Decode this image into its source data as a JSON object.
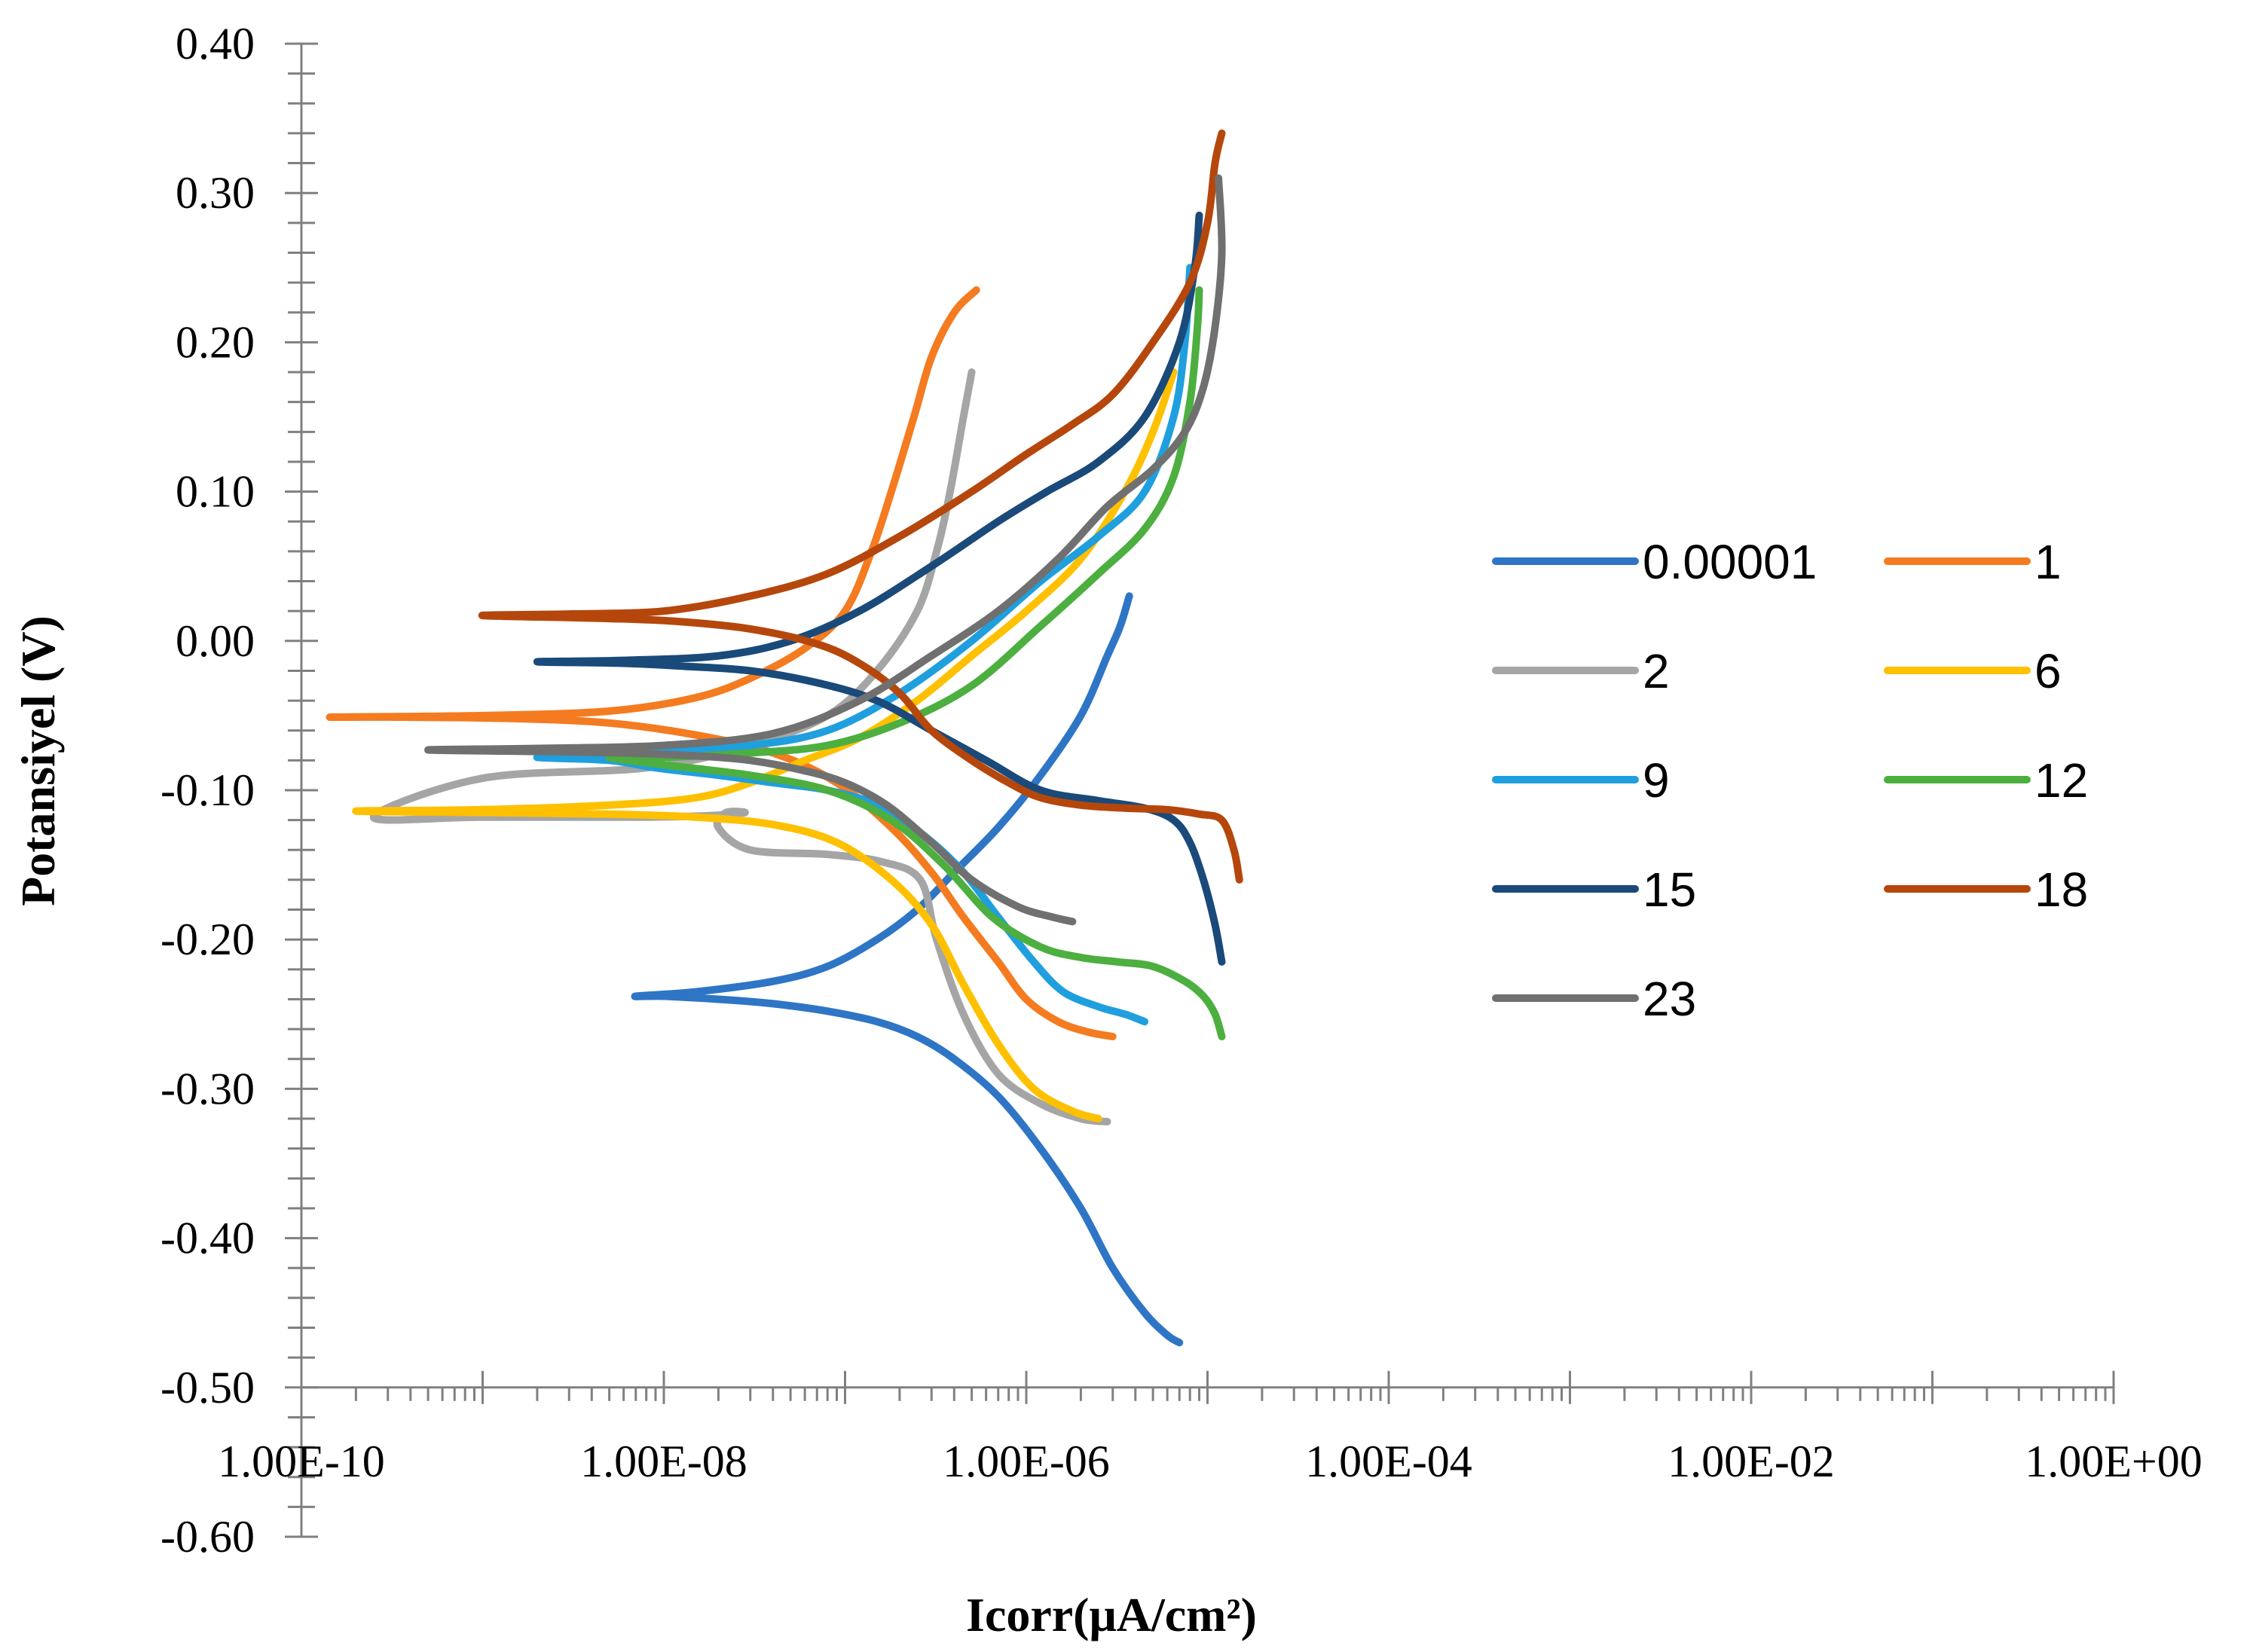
{
  "chart_data": {
    "type": "line",
    "title": "",
    "xlabel": "Icorr(μA/cm²)",
    "ylabel": "Potansiyel (V)",
    "xscale": "log",
    "xlim": [
      1e-10,
      1
    ],
    "ylim": [
      -0.6,
      0.4
    ],
    "x_axis_crosses_y_at": -0.5,
    "x_tick_labels": [
      "1.00E-10",
      "1.00E-08",
      "1.00E-06",
      "1.00E-04",
      "1.00E-02",
      "1.00E+00"
    ],
    "y_tick_labels": [
      "0.40",
      "0.30",
      "0.20",
      "0.10",
      "0.00",
      "-0.10",
      "-0.20",
      "-0.30",
      "-0.40",
      "-0.50",
      "-0.60"
    ],
    "legend_position": "right",
    "series": [
      {
        "name": "0.00001",
        "color": "#2E75C6",
        "x": [
          7e-06,
          6e-06,
          4.5e-06,
          3e-06,
          2e-06,
          1.2e-06,
          7e-07,
          4e-07,
          2.5e-07,
          1.5e-07,
          8e-08,
          4e-08,
          2e-08,
          1e-08,
          7e-09,
          1.5e-08,
          4e-08,
          8e-08,
          1.5e-07,
          2.5e-07,
          4e-07,
          7e-07,
          1.2e-06,
          2e-06,
          2.8e-06,
          3.3e-06,
          3.7e-06
        ],
        "y": [
          -0.47,
          -0.465,
          -0.45,
          -0.42,
          -0.38,
          -0.34,
          -0.305,
          -0.28,
          -0.265,
          -0.255,
          -0.248,
          -0.243,
          -0.24,
          -0.238,
          -0.238,
          -0.235,
          -0.228,
          -0.218,
          -0.2,
          -0.18,
          -0.155,
          -0.125,
          -0.09,
          -0.05,
          -0.01,
          0.01,
          0.03
        ]
      },
      {
        "name": "1",
        "color": "#F47B20",
        "x": [
          3e-06,
          2.2e-06,
          1.5e-06,
          1e-06,
          7e-07,
          4.5e-07,
          3e-07,
          1.8e-07,
          9e-08,
          4e-08,
          1.5e-08,
          5e-09,
          1.5e-09,
          3e-10,
          1.5e-10,
          1e-09,
          5e-09,
          1.5e-08,
          3e-08,
          6e-08,
          1e-07,
          1.4e-07,
          1.8e-07,
          2.4e-07,
          3e-07,
          4e-07,
          5.3e-07
        ],
        "y": [
          -0.265,
          -0.262,
          -0.255,
          -0.24,
          -0.215,
          -0.185,
          -0.155,
          -0.125,
          -0.095,
          -0.075,
          -0.063,
          -0.055,
          -0.052,
          -0.051,
          -0.051,
          -0.05,
          -0.047,
          -0.038,
          -0.025,
          -0.005,
          0.02,
          0.06,
          0.1,
          0.15,
          0.19,
          0.22,
          0.235
        ]
      },
      {
        "name": "2",
        "color": "#A5A5A5",
        "x": [
          2.8e-06,
          2e-06,
          1.2e-06,
          7e-07,
          4.5e-07,
          3.2e-07,
          2.6e-07,
          1.6e-07,
          8e-08,
          3e-08,
          2e-08,
          2.2e-08,
          2.8e-08,
          1.8e-08,
          8e-09,
          1e-09,
          2.5e-10,
          1e-09,
          8e-09,
          3e-08,
          8e-08,
          1.5e-07,
          2.5e-07,
          3.2e-07,
          3.8e-07,
          4.5e-07,
          5e-07
        ],
        "y": [
          -0.322,
          -0.32,
          -0.31,
          -0.29,
          -0.25,
          -0.2,
          -0.16,
          -0.148,
          -0.143,
          -0.14,
          -0.125,
          -0.115,
          -0.115,
          -0.117,
          -0.118,
          -0.118,
          -0.118,
          -0.092,
          -0.085,
          -0.07,
          -0.05,
          -0.02,
          0.02,
          0.06,
          0.1,
          0.15,
          0.18
        ]
      },
      {
        "name": "6",
        "color": "#FFC000",
        "x": [
          2.5e-06,
          1.8e-06,
          1.1e-06,
          7e-07,
          4.5e-07,
          3e-07,
          1.8e-07,
          9e-08,
          4e-08,
          1.5e-08,
          5e-09,
          1.2e-09,
          2e-10,
          1e-09,
          5e-09,
          1.5e-08,
          3e-08,
          6e-08,
          1.2e-07,
          2.5e-07,
          5e-07,
          1e-06,
          2e-06,
          3.5e-06,
          5e-06,
          6.5e-06
        ],
        "y": [
          -0.32,
          -0.315,
          -0.3,
          -0.27,
          -0.23,
          -0.19,
          -0.16,
          -0.135,
          -0.123,
          -0.118,
          -0.116,
          -0.115,
          -0.114,
          -0.113,
          -0.11,
          -0.105,
          -0.095,
          -0.08,
          -0.065,
          -0.04,
          -0.01,
          0.02,
          0.055,
          0.1,
          0.14,
          0.18
        ]
      },
      {
        "name": "9",
        "color": "#1F9FDE",
        "x": [
          4.5e-06,
          3.5e-06,
          2.5e-06,
          1.6e-06,
          1.1e-06,
          7e-07,
          4.5e-07,
          2.7e-07,
          1.5e-07,
          8e-08,
          4e-08,
          2e-08,
          9e-09,
          5e-09,
          2e-09,
          4e-09,
          1e-08,
          3e-08,
          8e-08,
          2e-07,
          5e-07,
          1.2e-06,
          2.5e-06,
          4.5e-06,
          6.5e-06,
          7.5e-06,
          8e-06
        ],
        "y": [
          -0.255,
          -0.25,
          -0.245,
          -0.235,
          -0.215,
          -0.185,
          -0.155,
          -0.13,
          -0.11,
          -0.1,
          -0.095,
          -0.09,
          -0.085,
          -0.08,
          -0.078,
          -0.076,
          -0.073,
          -0.07,
          -0.06,
          -0.035,
          0.0,
          0.04,
          0.07,
          0.1,
          0.15,
          0.2,
          0.25
        ]
      },
      {
        "name": "12",
        "color": "#4CAF3F",
        "x": [
          1.2e-05,
          1.1e-05,
          9.5e-06,
          7.5e-06,
          5e-06,
          3.2e-06,
          2e-06,
          1.2e-06,
          6.5e-07,
          3.5e-07,
          1.8e-07,
          8e-08,
          3e-08,
          1e-08,
          5e-09,
          1e-08,
          3e-08,
          8e-08,
          2e-07,
          5e-07,
          1.2e-06,
          2.5e-06,
          4.5e-06,
          6.5e-06,
          8e-06,
          8.8e-06,
          9e-06
        ],
        "y": [
          -0.265,
          -0.25,
          -0.238,
          -0.228,
          -0.218,
          -0.215,
          -0.212,
          -0.205,
          -0.185,
          -0.15,
          -0.12,
          -0.1,
          -0.09,
          -0.083,
          -0.078,
          -0.078,
          -0.075,
          -0.07,
          -0.055,
          -0.03,
          0.01,
          0.045,
          0.075,
          0.11,
          0.16,
          0.21,
          0.235
        ]
      },
      {
        "name": "15",
        "color": "#1A4A7A",
        "x": [
          1.2e-05,
          1.1e-05,
          9.5e-06,
          8e-06,
          6.5e-06,
          4.5e-06,
          2.5e-06,
          1.2e-06,
          6e-07,
          3e-07,
          1.5e-07,
          7e-08,
          3e-08,
          1.3e-08,
          6e-09,
          2e-09,
          6e-09,
          2e-08,
          5e-08,
          1.2e-07,
          3e-07,
          7e-07,
          1.3e-06,
          2.5e-06,
          4.5e-06,
          7e-06,
          8.5e-06,
          9e-06
        ],
        "y": [
          -0.215,
          -0.19,
          -0.16,
          -0.135,
          -0.12,
          -0.112,
          -0.107,
          -0.1,
          -0.08,
          -0.06,
          -0.04,
          -0.028,
          -0.02,
          -0.017,
          -0.015,
          -0.014,
          -0.013,
          -0.01,
          0.0,
          0.02,
          0.05,
          0.08,
          0.1,
          0.12,
          0.15,
          0.2,
          0.25,
          0.285
        ]
      },
      {
        "name": "18",
        "color": "#B5470C",
        "x": [
          1.5e-05,
          1.4e-05,
          1.2e-05,
          9e-06,
          6e-06,
          3.5e-06,
          2e-06,
          1.2e-06,
          8e-07,
          5e-07,
          3e-07,
          2e-07,
          1.2e-07,
          7e-08,
          3e-08,
          1.2e-08,
          5e-09,
          1e-09,
          3e-09,
          1e-08,
          3e-08,
          8e-08,
          2e-07,
          5e-07,
          1e-06,
          1.8e-06,
          3e-06,
          5e-06,
          8e-06,
          1e-05,
          1.1e-05,
          1.2e-05
        ],
        "y": [
          -0.16,
          -0.14,
          -0.12,
          -0.116,
          -0.113,
          -0.112,
          -0.11,
          -0.105,
          -0.095,
          -0.08,
          -0.06,
          -0.035,
          -0.015,
          -0.002,
          0.008,
          0.013,
          0.015,
          0.017,
          0.018,
          0.02,
          0.03,
          0.045,
          0.07,
          0.1,
          0.125,
          0.145,
          0.165,
          0.2,
          0.24,
          0.28,
          0.32,
          0.34
        ]
      },
      {
        "name": "23",
        "color": "#707070",
        "x": [
          1.8e-06,
          1.4e-06,
          9e-07,
          5e-07,
          3e-07,
          1.7e-07,
          1e-07,
          6e-08,
          3e-08,
          1.5e-08,
          6e-09,
          2e-09,
          5e-10,
          2e-09,
          1e-08,
          4e-08,
          1.2e-07,
          3e-07,
          7e-07,
          1.5e-06,
          2.8e-06,
          5e-06,
          7.5e-06,
          9.5e-06,
          1.1e-05,
          1.2e-05,
          1.15e-05
        ],
        "y": [
          -0.188,
          -0.185,
          -0.178,
          -0.16,
          -0.135,
          -0.11,
          -0.095,
          -0.087,
          -0.08,
          -0.077,
          -0.075,
          -0.074,
          -0.073,
          -0.072,
          -0.07,
          -0.062,
          -0.04,
          -0.01,
          0.02,
          0.055,
          0.09,
          0.115,
          0.14,
          0.17,
          0.21,
          0.26,
          0.31
        ]
      }
    ]
  }
}
